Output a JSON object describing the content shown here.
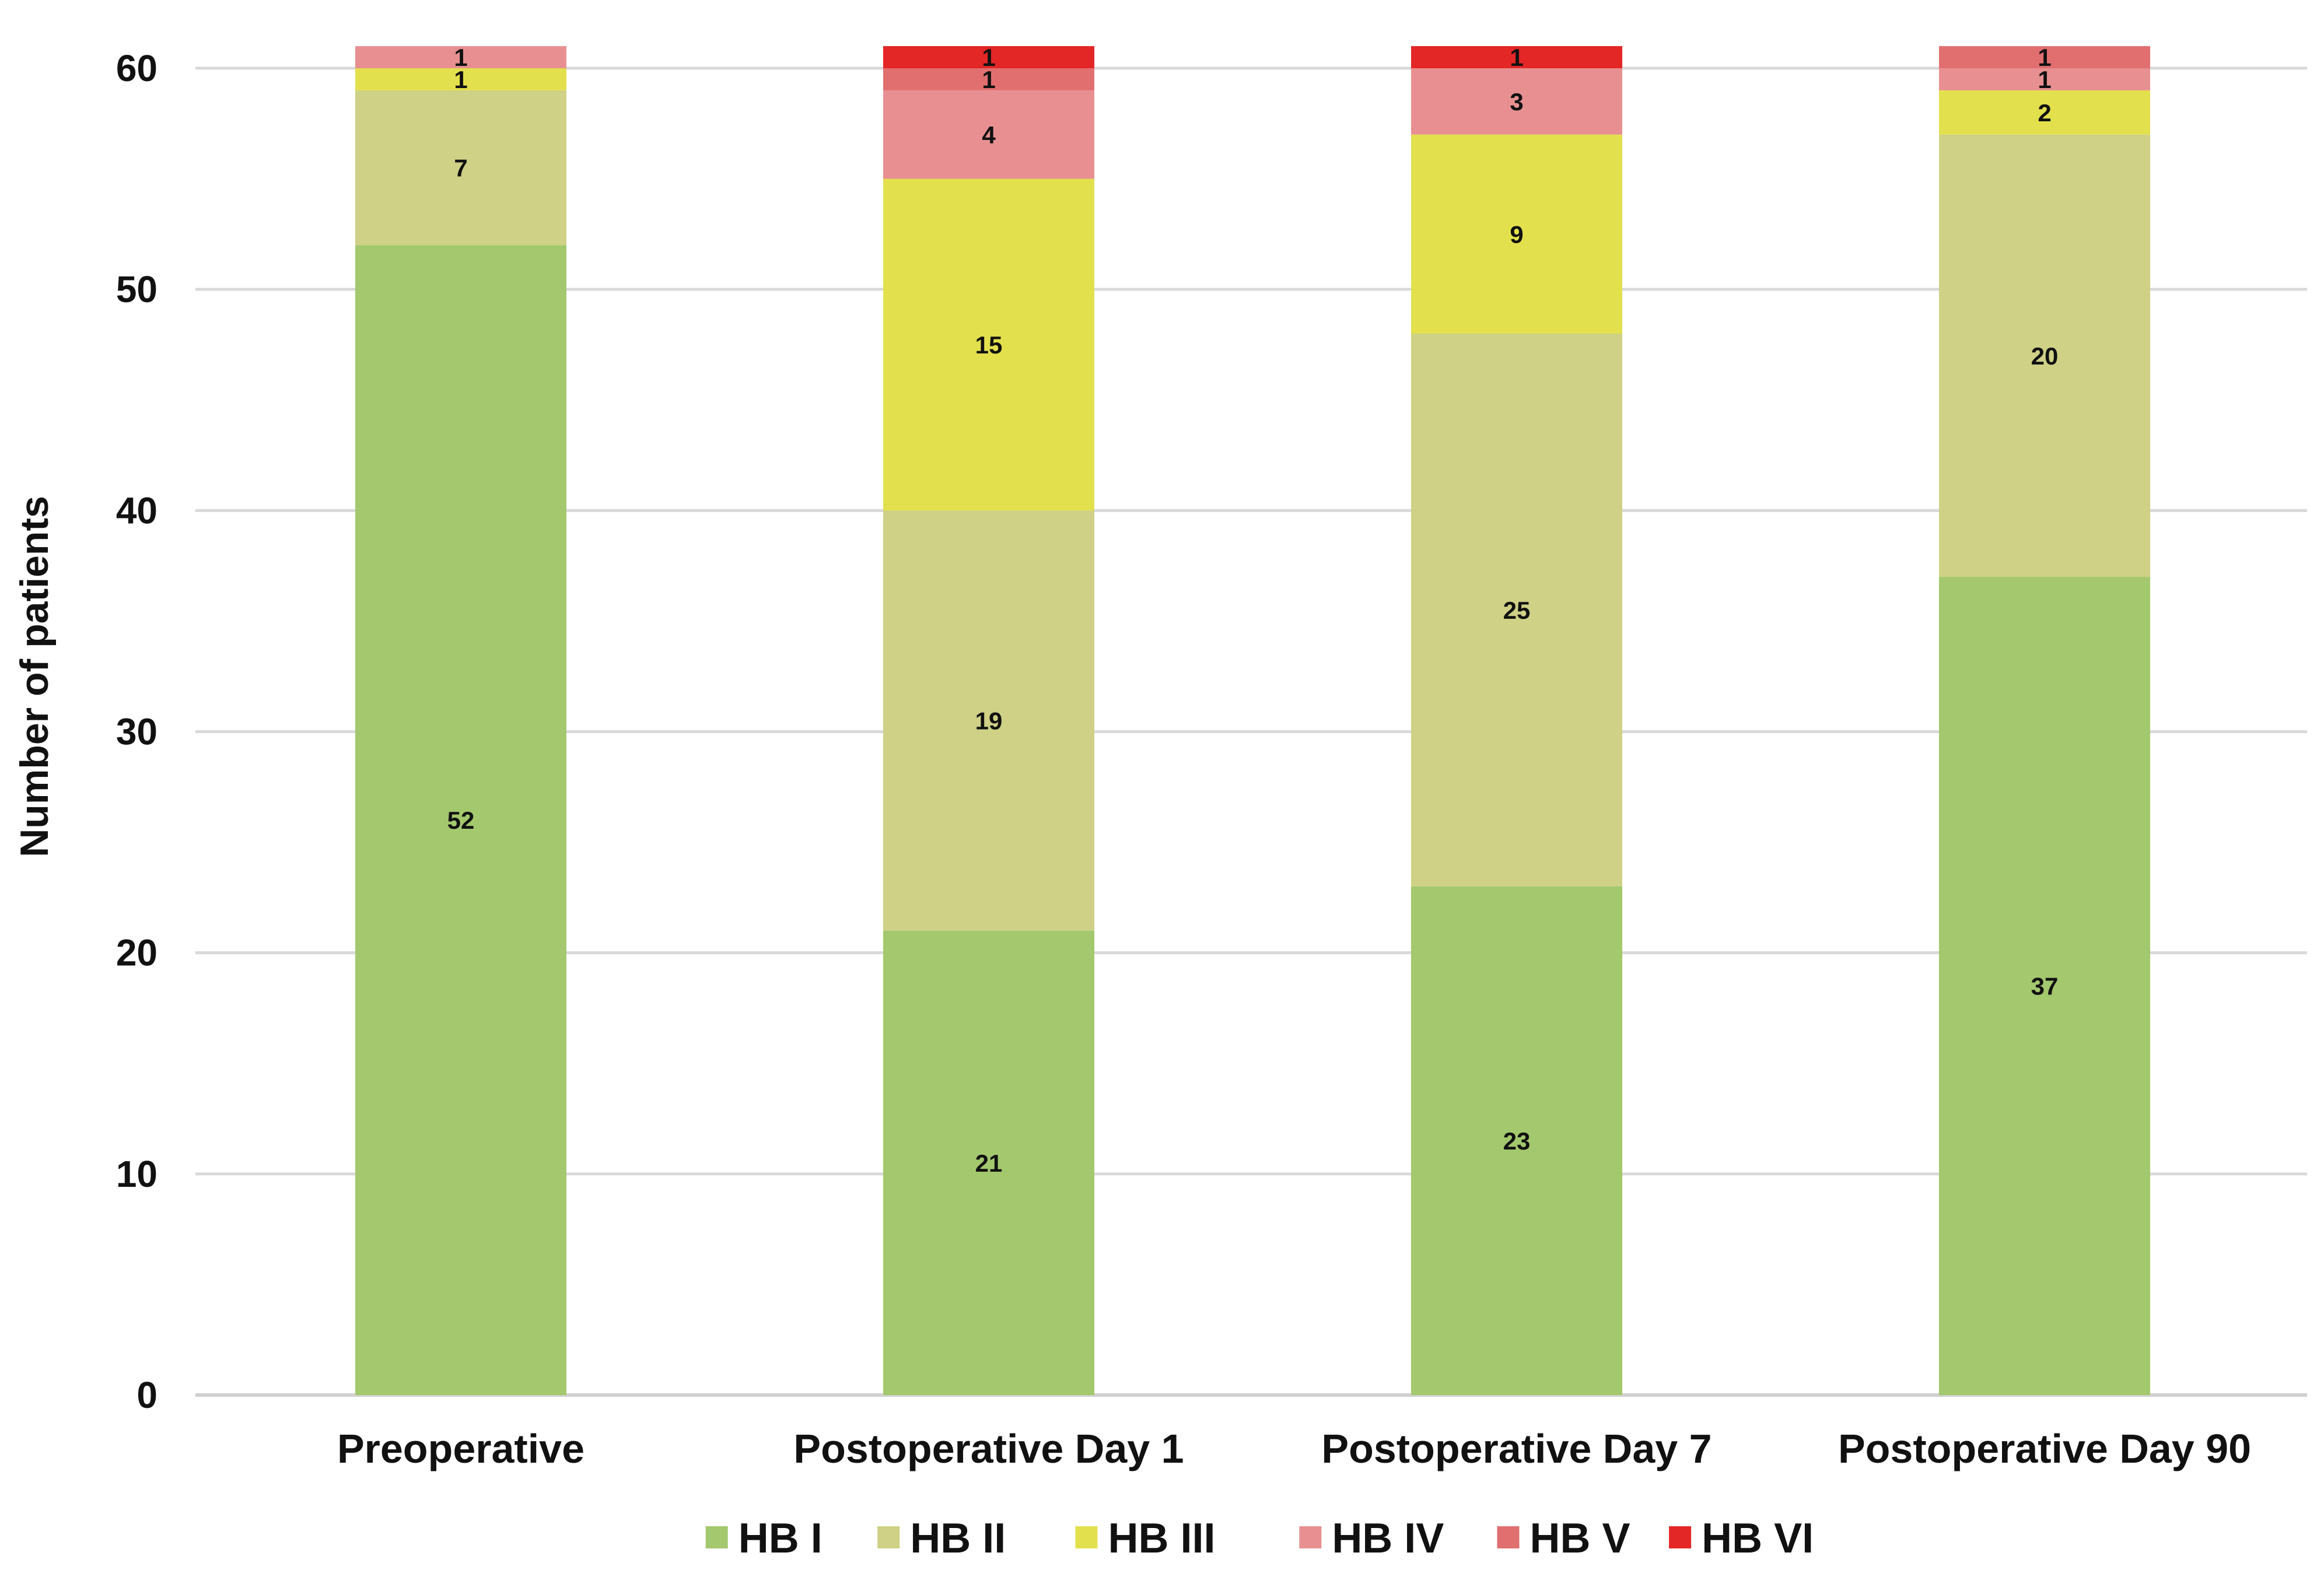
{
  "chart_data": {
    "type": "bar",
    "stacked": true,
    "title": "",
    "xlabel": "",
    "ylabel": "Number of patients",
    "ylim": [
      0,
      60
    ],
    "yticks": [
      0,
      10,
      20,
      30,
      40,
      50,
      60
    ],
    "grid": true,
    "legend_position": "bottom",
    "categories": [
      "Preoperative",
      "Postoperative Day 1",
      "Postoperative Day 7",
      "Postoperative Day 90"
    ],
    "series": [
      {
        "name": "HB I",
        "color": "#a3c86d",
        "values": [
          52,
          21,
          23,
          37
        ],
        "labels": [
          "52",
          "21",
          "23",
          "37"
        ]
      },
      {
        "name": "HB II",
        "color": "#ced186",
        "values": [
          7,
          19,
          25,
          20
        ],
        "labels": [
          "7",
          "19",
          "25",
          "20"
        ]
      },
      {
        "name": "HB III",
        "color": "#e3e04d",
        "values": [
          1,
          15,
          9,
          2
        ],
        "labels": [
          "1",
          "15",
          "9",
          "2"
        ]
      },
      {
        "name": "HB IV",
        "color": "#e89091",
        "values": [
          1,
          4,
          3,
          1
        ],
        "labels": [
          "1",
          "4",
          "3",
          "1"
        ]
      },
      {
        "name": "HB V",
        "color": "#e16f70",
        "values": [
          0,
          1,
          0,
          1
        ],
        "labels": [
          "",
          "1",
          "",
          "1"
        ]
      },
      {
        "name": "HB VI",
        "color": "#e32626",
        "values": [
          0,
          1,
          1,
          0
        ],
        "labels": [
          "",
          "1",
          "1",
          ""
        ]
      }
    ]
  }
}
